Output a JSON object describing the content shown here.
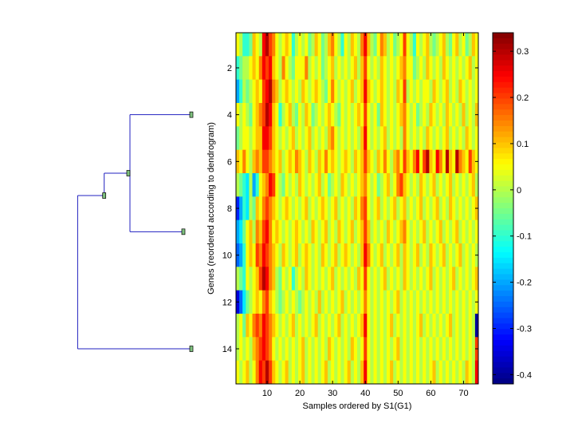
{
  "chart_data": [
    {
      "type": "heatmap",
      "title": "",
      "xlabel": "Samples ordered by S1(G1)",
      "ylabel": "Genes (reordered according to dendrogram)",
      "n_rows": 15,
      "n_cols": 74,
      "xlim": [
        0.5,
        74.5
      ],
      "ylim": [
        0.5,
        15.5
      ],
      "x_ticks": [
        10,
        20,
        30,
        40,
        50,
        60,
        70
      ],
      "x_tick_labels": [
        "10",
        "20",
        "30",
        "40",
        "50",
        "60",
        "70"
      ],
      "y_ticks": [
        2,
        4,
        6,
        8,
        10,
        12,
        14
      ],
      "y_tick_labels": [
        "2",
        "4",
        "6",
        "8",
        "10",
        "12",
        "14"
      ],
      "colormap": "jet",
      "value_range": [
        -0.42,
        0.34
      ],
      "colorbar": {
        "ticks": [
          0.3,
          0.2,
          0.1,
          0,
          -0.1,
          -0.2,
          -0.3,
          -0.4
        ],
        "tick_labels": [
          "0.3",
          "0.2",
          "0.1",
          "0",
          "-0.1",
          "-0.2",
          "-0.3",
          "-0.4"
        ]
      },
      "values": [
        [
          0.05,
          0.0,
          -0.1,
          -0.1,
          -0.05,
          0.1,
          0.05,
          0.0,
          0.25,
          0.3,
          0.2,
          0.15,
          0.05,
          0.0,
          0.05,
          0.1,
          0.05,
          -0.1,
          0.0,
          0.05,
          0.0,
          0.05,
          -0.05,
          0.0,
          0.1,
          0.05,
          -0.05,
          0.0,
          0.1,
          0.15,
          0.05,
          0.0,
          -0.1,
          0.05,
          0.0,
          0.1,
          0.05,
          0.0,
          0.15,
          0.25,
          0.1,
          0.0,
          -0.05,
          0.05,
          0.15,
          0.1,
          0.0,
          0.05,
          -0.05,
          0.0,
          0.05,
          0.2,
          0.05,
          0.0,
          -0.1,
          0.05,
          0.0,
          0.05,
          0.1,
          0.0,
          -0.05,
          0.0,
          0.05,
          0.1,
          0.0,
          -0.05,
          0.05,
          0.1,
          0.0,
          0.05,
          -0.05,
          0.0,
          0.1,
          0.05
        ],
        [
          -0.1,
          -0.05,
          0.0,
          0.0,
          0.05,
          0.1,
          0.05,
          0.15,
          0.25,
          0.2,
          0.25,
          0.1,
          0.05,
          0.0,
          0.15,
          0.05,
          0.0,
          -0.05,
          0.05,
          0.05,
          0.05,
          0.15,
          0.0,
          0.05,
          0.0,
          0.05,
          -0.05,
          0.0,
          0.05,
          0.1,
          0.0,
          0.05,
          0.0,
          0.05,
          0.0,
          0.05,
          0.1,
          0.0,
          0.1,
          0.2,
          0.05,
          0.0,
          0.05,
          0.0,
          0.1,
          0.05,
          0.0,
          0.05,
          0.0,
          0.05,
          0.1,
          0.15,
          0.05,
          0.05,
          -0.05,
          0.0,
          0.05,
          0.0,
          0.1,
          0.05,
          0.0,
          0.05,
          0.0,
          0.1,
          0.05,
          0.0,
          0.05,
          0.0,
          0.05,
          0.0,
          0.05,
          0.1,
          0.0,
          0.05
        ],
        [
          -0.2,
          -0.1,
          0.0,
          -0.05,
          0.0,
          0.05,
          0.1,
          0.05,
          0.2,
          0.25,
          0.3,
          0.15,
          0.1,
          0.0,
          0.05,
          0.1,
          0.05,
          0.0,
          0.05,
          0.0,
          0.1,
          0.05,
          0.0,
          0.05,
          0.1,
          0.05,
          0.0,
          -0.05,
          0.05,
          0.15,
          0.05,
          0.0,
          0.05,
          0.0,
          0.05,
          0.1,
          0.0,
          0.05,
          0.1,
          0.25,
          0.1,
          0.05,
          0.0,
          0.05,
          0.1,
          0.05,
          0.0,
          0.05,
          0.0,
          0.1,
          0.05,
          0.2,
          0.0,
          0.05,
          0.0,
          0.05,
          0.0,
          0.05,
          0.05,
          0.0,
          0.1,
          0.05,
          0.0,
          0.05,
          0.1,
          0.0,
          0.05,
          0.0,
          0.1,
          0.05,
          0.0,
          0.05,
          0.0,
          0.05
        ],
        [
          0.05,
          0.0,
          0.05,
          0.0,
          -0.05,
          0.05,
          0.1,
          0.15,
          0.2,
          0.3,
          0.25,
          0.1,
          0.05,
          -0.1,
          0.0,
          0.05,
          0.1,
          0.0,
          -0.05,
          0.05,
          0.0,
          0.1,
          0.05,
          -0.05,
          0.0,
          0.05,
          0.0,
          0.05,
          0.1,
          0.05,
          0.0,
          -0.05,
          0.05,
          0.0,
          0.05,
          0.0,
          0.05,
          0.1,
          0.05,
          0.2,
          0.05,
          0.0,
          0.05,
          -0.05,
          0.1,
          0.05,
          0.0,
          0.05,
          0.0,
          0.05,
          0.1,
          0.15,
          0.05,
          0.0,
          0.05,
          -0.05,
          0.0,
          0.05,
          0.0,
          0.1,
          0.05,
          0.0,
          0.05,
          0.0,
          0.1,
          0.05,
          0.0,
          0.05,
          0.0,
          0.1,
          0.0,
          0.05,
          0.0,
          0.1
        ],
        [
          -0.05,
          0.0,
          0.05,
          0.05,
          0.0,
          0.05,
          0.1,
          0.1,
          0.25,
          0.25,
          0.2,
          0.1,
          0.05,
          0.0,
          0.05,
          0.0,
          0.05,
          0.1,
          0.0,
          0.05,
          0.0,
          0.05,
          0.1,
          0.0,
          0.05,
          0.0,
          0.05,
          0.0,
          0.1,
          0.15,
          0.05,
          0.0,
          0.05,
          0.0,
          0.05,
          0.0,
          0.05,
          0.0,
          0.1,
          0.25,
          0.05,
          0.0,
          0.05,
          0.0,
          0.05,
          0.1,
          0.0,
          0.05,
          0.0,
          0.05,
          0.0,
          0.15,
          0.05,
          0.0,
          0.05,
          0.0,
          0.05,
          0.0,
          0.1,
          0.05,
          0.0,
          0.05,
          0.0,
          0.05,
          0.1,
          0.0,
          0.05,
          0.0,
          0.05,
          0.0,
          0.1,
          0.05,
          0.0,
          0.05
        ],
        [
          0.1,
          0.05,
          0.15,
          0.05,
          0.0,
          0.1,
          0.15,
          0.1,
          0.2,
          0.2,
          0.15,
          0.1,
          0.05,
          0.1,
          0.0,
          0.05,
          0.1,
          0.05,
          0.15,
          0.1,
          0.05,
          0.0,
          0.1,
          0.05,
          0.0,
          0.1,
          0.05,
          0.15,
          0.05,
          0.1,
          0.05,
          0.0,
          0.05,
          0.1,
          0.05,
          0.0,
          0.1,
          0.05,
          0.1,
          0.2,
          0.1,
          0.05,
          0.0,
          0.1,
          0.05,
          0.15,
          0.05,
          0.0,
          0.1,
          0.15,
          0.05,
          0.2,
          0.1,
          0.05,
          0.15,
          0.25,
          0.05,
          0.2,
          0.3,
          0.1,
          0.05,
          0.25,
          0.15,
          0.05,
          0.3,
          0.1,
          0.05,
          0.3,
          0.15,
          0.1,
          0.05,
          0.2,
          0.1,
          0.05
        ],
        [
          0.0,
          -0.05,
          -0.1,
          -0.15,
          0.0,
          -0.2,
          -0.1,
          0.05,
          0.1,
          0.15,
          0.25,
          0.2,
          0.05,
          0.0,
          -0.05,
          0.05,
          0.0,
          0.05,
          0.0,
          0.1,
          0.05,
          0.0,
          0.05,
          0.0,
          0.05,
          0.1,
          0.0,
          0.05,
          -0.05,
          0.0,
          0.05,
          0.0,
          0.1,
          0.05,
          0.0,
          0.05,
          0.0,
          0.05,
          0.1,
          0.15,
          0.05,
          0.0,
          0.05,
          -0.05,
          0.0,
          0.05,
          0.1,
          0.0,
          0.05,
          0.15,
          0.2,
          0.1,
          0.05,
          0.0,
          0.05,
          0.0,
          0.1,
          0.05,
          0.0,
          0.05,
          0.1,
          0.0,
          0.05,
          0.0,
          0.05,
          0.1,
          0.0,
          0.05,
          0.0,
          0.05,
          0.0,
          0.05,
          0.1,
          0.0
        ],
        [
          -0.3,
          -0.2,
          -0.1,
          -0.15,
          0.0,
          -0.05,
          0.1,
          0.05,
          0.15,
          0.2,
          0.15,
          0.1,
          0.05,
          0.0,
          0.05,
          0.1,
          0.05,
          0.0,
          0.05,
          0.0,
          0.05,
          0.1,
          0.0,
          0.05,
          0.0,
          0.05,
          0.1,
          0.05,
          0.0,
          0.05,
          0.1,
          0.0,
          0.05,
          0.0,
          0.05,
          0.0,
          0.1,
          0.05,
          0.15,
          0.2,
          0.05,
          0.0,
          0.05,
          0.1,
          0.0,
          0.05,
          0.0,
          0.05,
          0.1,
          0.0,
          0.05,
          0.1,
          0.0,
          0.05,
          0.0,
          0.05,
          0.1,
          0.0,
          0.05,
          0.0,
          0.05,
          0.1,
          0.0,
          0.05,
          0.0,
          0.1,
          0.05,
          0.0,
          0.05,
          0.0,
          0.05,
          0.0,
          0.05,
          0.1
        ],
        [
          -0.2,
          -0.15,
          -0.05,
          0.05,
          0.1,
          0.0,
          0.15,
          0.1,
          0.2,
          0.25,
          0.15,
          0.05,
          0.1,
          0.05,
          0.0,
          0.05,
          0.0,
          0.05,
          0.1,
          0.05,
          0.0,
          0.05,
          0.0,
          0.1,
          0.05,
          0.0,
          0.05,
          0.1,
          0.0,
          0.05,
          0.0,
          0.1,
          0.05,
          0.0,
          0.05,
          0.1,
          0.0,
          0.05,
          0.1,
          0.2,
          0.1,
          0.0,
          0.05,
          0.0,
          0.05,
          0.0,
          0.1,
          0.05,
          0.0,
          0.05,
          0.1,
          0.15,
          0.05,
          0.0,
          0.05,
          0.0,
          0.05,
          0.1,
          0.0,
          0.05,
          0.0,
          0.05,
          0.1,
          0.0,
          0.05,
          0.0,
          0.05,
          0.1,
          0.0,
          0.05,
          0.0,
          0.05,
          0.0,
          0.05
        ],
        [
          -0.25,
          -0.2,
          -0.1,
          0.05,
          0.1,
          0.05,
          0.2,
          0.15,
          0.25,
          0.2,
          0.15,
          0.1,
          0.05,
          0.0,
          0.1,
          0.05,
          0.0,
          0.05,
          0.1,
          0.0,
          0.05,
          0.1,
          0.05,
          0.0,
          0.05,
          0.0,
          0.1,
          0.05,
          0.0,
          0.05,
          0.1,
          0.0,
          0.05,
          0.1,
          0.05,
          0.0,
          0.05,
          0.0,
          0.1,
          0.25,
          0.15,
          0.05,
          0.0,
          0.05,
          0.1,
          0.0,
          0.05,
          0.0,
          0.05,
          0.1,
          0.0,
          0.1,
          0.05,
          0.0,
          0.05,
          0.1,
          0.0,
          0.05,
          0.0,
          0.1,
          0.05,
          0.0,
          0.05,
          0.1,
          0.0,
          0.05,
          0.0,
          0.05,
          0.1,
          0.0,
          0.05,
          0.0,
          0.05,
          0.0
        ],
        [
          0.0,
          -0.05,
          -0.1,
          0.05,
          0.0,
          0.05,
          0.1,
          0.2,
          0.3,
          0.25,
          0.15,
          0.1,
          0.0,
          -0.05,
          0.05,
          0.0,
          0.05,
          -0.1,
          0.0,
          0.05,
          0.0,
          0.1,
          0.05,
          0.0,
          0.05,
          0.0,
          0.05,
          0.0,
          0.05,
          0.1,
          0.0,
          0.05,
          0.0,
          0.05,
          0.0,
          0.05,
          0.0,
          0.1,
          0.05,
          0.2,
          0.05,
          0.0,
          0.05,
          0.0,
          0.05,
          0.1,
          0.0,
          0.05,
          0.0,
          0.05,
          0.0,
          0.1,
          0.05,
          0.0,
          0.05,
          0.0,
          0.05,
          0.0,
          0.05,
          0.1,
          0.0,
          0.05,
          0.0,
          0.05,
          0.0,
          0.05,
          0.1,
          0.0,
          0.05,
          0.0,
          0.05,
          0.0,
          0.05,
          0.1
        ],
        [
          -0.35,
          -0.25,
          -0.15,
          -0.05,
          0.0,
          0.05,
          0.1,
          0.05,
          0.15,
          0.2,
          0.1,
          0.05,
          0.0,
          -0.05,
          0.0,
          0.05,
          0.0,
          0.05,
          0.0,
          -0.05,
          0.0,
          0.05,
          0.0,
          0.05,
          0.0,
          0.1,
          0.0,
          0.05,
          0.0,
          0.05,
          0.0,
          0.05,
          0.1,
          0.0,
          0.05,
          0.0,
          0.05,
          0.0,
          0.05,
          0.15,
          0.05,
          0.0,
          0.05,
          0.0,
          0.05,
          0.0,
          0.05,
          0.0,
          0.05,
          0.1,
          0.0,
          0.05,
          0.0,
          0.05,
          0.0,
          0.05,
          0.0,
          0.05,
          0.0,
          0.05,
          0.0,
          0.05,
          0.0,
          0.05,
          0.0,
          0.05,
          0.0,
          0.05,
          0.0,
          0.05,
          0.0,
          0.05,
          0.0,
          0.05
        ],
        [
          0.0,
          0.05,
          -0.05,
          0.1,
          0.05,
          0.15,
          0.2,
          0.15,
          0.25,
          0.2,
          0.15,
          0.1,
          0.05,
          0.0,
          0.05,
          0.0,
          0.05,
          0.1,
          0.0,
          0.05,
          0.0,
          0.05,
          0.0,
          0.05,
          0.1,
          0.0,
          0.05,
          0.0,
          0.05,
          0.0,
          0.05,
          0.1,
          0.0,
          0.05,
          0.0,
          0.05,
          0.0,
          0.05,
          0.1,
          0.25,
          0.05,
          0.0,
          0.05,
          0.0,
          0.05,
          0.0,
          0.05,
          0.1,
          0.0,
          0.05,
          0.0,
          0.05,
          0.0,
          0.05,
          0.0,
          0.05,
          0.1,
          0.0,
          0.05,
          0.0,
          0.05,
          0.0,
          0.05,
          0.0,
          0.05,
          0.1,
          0.0,
          0.05,
          0.0,
          0.05,
          0.0,
          0.05,
          0.0,
          -0.4
        ],
        [
          0.0,
          0.05,
          0.0,
          0.05,
          0.0,
          0.1,
          0.15,
          0.2,
          0.25,
          0.2,
          0.15,
          0.05,
          0.0,
          0.05,
          0.0,
          0.05,
          0.0,
          0.05,
          0.0,
          0.05,
          0.1,
          0.0,
          0.05,
          0.0,
          0.05,
          0.0,
          0.05,
          0.0,
          0.1,
          0.05,
          0.0,
          0.05,
          0.0,
          0.05,
          0.0,
          0.1,
          0.05,
          0.0,
          0.05,
          0.2,
          0.05,
          0.0,
          0.05,
          0.0,
          0.05,
          0.0,
          0.05,
          0.0,
          0.05,
          0.1,
          0.0,
          0.05,
          0.0,
          0.05,
          0.0,
          0.05,
          0.0,
          0.05,
          0.0,
          0.05,
          0.0,
          0.05,
          0.0,
          0.05,
          0.0,
          0.05,
          0.0,
          0.05,
          0.0,
          0.05,
          0.0,
          0.05,
          0.0,
          0.2
        ],
        [
          0.05,
          0.0,
          0.05,
          0.1,
          0.0,
          0.05,
          0.15,
          0.25,
          0.2,
          0.3,
          0.2,
          0.1,
          0.05,
          0.0,
          0.05,
          0.1,
          0.0,
          0.05,
          0.0,
          0.05,
          0.1,
          0.0,
          0.05,
          0.0,
          0.05,
          0.0,
          0.05,
          0.1,
          0.0,
          0.05,
          0.0,
          0.05,
          0.0,
          0.05,
          0.1,
          0.0,
          0.05,
          0.0,
          0.1,
          0.25,
          0.05,
          0.0,
          0.05,
          0.0,
          0.05,
          0.0,
          0.05,
          0.1,
          0.0,
          0.05,
          0.0,
          0.05,
          0.0,
          0.05,
          0.0,
          0.05,
          0.0,
          0.05,
          0.0,
          0.05,
          0.1,
          0.0,
          0.05,
          0.0,
          0.05,
          0.0,
          0.05,
          0.0,
          0.05,
          0.0,
          0.1,
          0.05,
          0.0,
          0.25
        ]
      ]
    },
    {
      "type": "dendrogram",
      "orientation": "left",
      "leaves": [
        4,
        9,
        14
      ],
      "merges": [
        {
          "left": 4,
          "right": 9,
          "height": 2.0
        },
        {
          "left": "4+9",
          "right": 14,
          "height": 3.6
        }
      ]
    }
  ]
}
